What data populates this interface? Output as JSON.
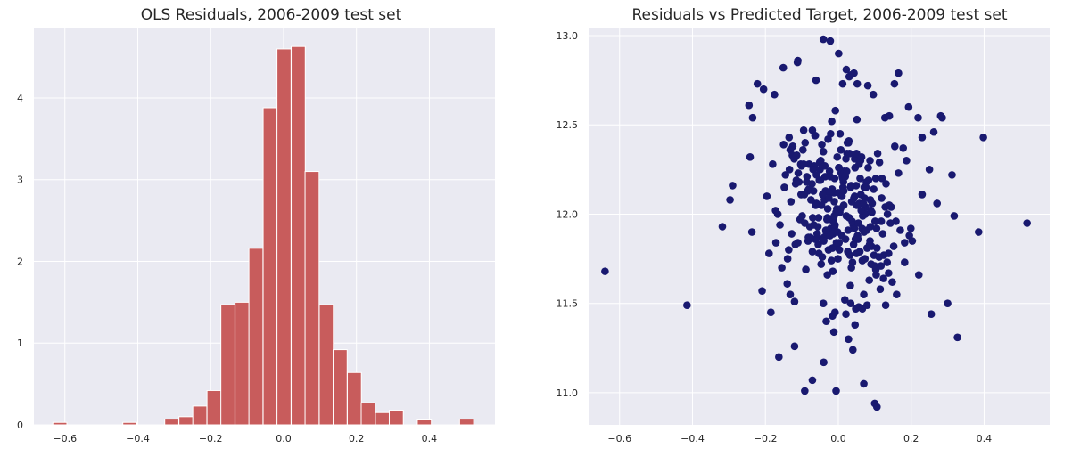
{
  "chart_data": [
    {
      "type": "bar",
      "subtype": "histogram",
      "title": "OLS Residuals, 2006-2009 test set",
      "xlabel": "",
      "ylabel": "",
      "xlim": [
        -0.685,
        0.58
      ],
      "ylim": [
        0,
        4.85
      ],
      "xticks": [
        -0.6,
        -0.4,
        -0.2,
        0.0,
        0.2,
        0.4
      ],
      "xtick_labels": [
        "−0.6",
        "−0.4",
        "−0.2",
        "0.0",
        "0.2",
        "0.4"
      ],
      "yticks": [
        0,
        1,
        2,
        3,
        4
      ],
      "ytick_labels": [
        "0",
        "1",
        "2",
        "3",
        "4"
      ],
      "bin_width": 0.0385,
      "bin_starts": [
        -0.633,
        -0.441,
        -0.326,
        -0.287,
        -0.249,
        -0.21,
        -0.172,
        -0.133,
        -0.095,
        -0.056,
        -0.018,
        0.021,
        0.059,
        0.098,
        0.136,
        0.175,
        0.213,
        0.252,
        0.29,
        0.367,
        0.483
      ],
      "values": [
        0.03,
        0.03,
        0.07,
        0.1,
        0.23,
        0.42,
        1.47,
        1.5,
        2.16,
        3.88,
        4.6,
        4.63,
        3.1,
        1.47,
        0.92,
        0.64,
        0.27,
        0.15,
        0.18,
        0.06,
        0.07
      ],
      "grid": true,
      "colors": {
        "bar": "#c85c5c",
        "bar_edge": "#ffffff",
        "background": "#eaeaf2",
        "grid": "#ffffff"
      }
    },
    {
      "type": "scatter",
      "title": "Residuals vs Predicted Target, 2006-2009 test set",
      "xlabel": "",
      "ylabel": "",
      "xlim": [
        -0.685,
        0.58
      ],
      "ylim": [
        10.82,
        13.04
      ],
      "xticks": [
        -0.6,
        -0.4,
        -0.2,
        0.0,
        0.2,
        0.4
      ],
      "xtick_labels": [
        "−0.6",
        "−0.4",
        "−0.2",
        "0.0",
        "0.2",
        "0.4"
      ],
      "yticks": [
        11.0,
        11.5,
        12.0,
        12.5,
        13.0
      ],
      "ytick_labels": [
        "11.0",
        "11.5",
        "12.0",
        "12.5",
        "13.0"
      ],
      "grid": true,
      "points_x": [
        -0.64,
        -0.415,
        0.518,
        0.398,
        0.385,
        0.327,
        0.312,
        0.318,
        0.281,
        0.271,
        0.221,
        0.199,
        0.187,
        0.16,
        0.138,
        -0.297,
        -0.318,
        -0.29,
        -0.242,
        -0.237,
        -0.209,
        -0.171,
        -0.163,
        -0.132,
        -0.12,
        -0.04,
        -0.012,
        0.028,
        0.07,
        0.1,
        0.106,
        -0.092,
        -0.071,
        -0.041,
        -0.022,
        0.022,
        0.043,
        0.035,
        -0.061,
        0.012,
        0.052,
        0.001,
        0.03,
        -0.112,
        0.081,
        0.096,
        0.04,
        -0.006,
        0.154,
        0.182,
        0.193,
        -0.205,
        -0.222,
        -0.151,
        -0.111,
        0.219,
        0.262,
        0.285,
        0.23,
        0.25,
        -0.06,
        0.011,
        0.045,
        0.071,
        -0.021,
        0.065,
        -0.045,
        0.12,
        0.155,
        -0.021,
        0.01,
        0.03,
        0.05,
        -0.03,
        0.002,
        0.024,
        0.015,
        -0.014,
        0.038,
        -0.036,
        0.062,
        -0.055,
        0.079,
        -0.072,
        0.092,
        -0.089,
        0.108,
        -0.105,
        0.125,
        -0.125,
        0.145,
        -0.14,
        0.165,
        -0.16,
        0.182,
        -0.18,
        0.203,
        -0.196,
        0.005,
        0.018,
        -0.008,
        0.033,
        -0.018,
        0.048,
        -0.028,
        0.056,
        -0.048,
        0.07,
        -0.064,
        0.085,
        -0.08,
        0.1,
        -0.095,
        0.115,
        -0.115,
        0.13,
        -0.132,
        0.148,
        -0.148,
        0.002,
        0.014,
        -0.004,
        0.026,
        -0.012,
        0.041,
        -0.024,
        0.054,
        -0.038,
        0.066,
        -0.052,
        0.078,
        -0.066,
        0.091,
        -0.081,
        0.104,
        -0.097,
        0.118,
        -0.114,
        0.134,
        -0.13,
        0.152,
        -0.145,
        0.17,
        -0.166,
        0.01,
        -0.003,
        0.022,
        -0.015,
        0.034,
        -0.027,
        0.046,
        -0.039,
        0.058,
        -0.051,
        0.073,
        -0.068,
        0.088,
        -0.083,
        0.103,
        -0.099,
        0.119,
        -0.118,
        0.138,
        -0.134,
        0.158,
        -0.155,
        0.178,
        -0.172,
        0.195,
        -0.19,
        0.0,
        0.012,
        -0.01,
        0.025,
        -0.02,
        0.037,
        -0.033,
        0.049,
        -0.044,
        0.061,
        -0.057,
        0.075,
        -0.07,
        0.09,
        -0.086,
        0.106,
        -0.102,
        0.124,
        -0.121,
        0.143,
        -0.139,
        0.008,
        -0.006,
        0.02,
        -0.017,
        0.032,
        -0.029,
        0.044,
        -0.041,
        0.059,
        -0.054,
        0.072,
        -0.069,
        0.087,
        -0.084,
        0.103,
        -0.101,
        0.122,
        -0.117,
        0.14,
        -0.136,
        0.004,
        0.016,
        -0.009,
        0.029,
        -0.023,
        0.043,
        -0.035,
        0.055,
        -0.05,
        0.069,
        -0.063,
        0.083,
        -0.078,
        0.098,
        -0.093,
        0.113,
        -0.111,
        0.131,
        -0.128,
        0.006,
        0.019,
        -0.007,
        0.031,
        -0.019,
        0.045,
        -0.031,
        0.057,
        -0.046,
        0.071,
        -0.06,
        0.086,
        -0.075,
        0.101,
        -0.091,
        0.117,
        -0.108,
        0.135,
        -0.126,
        0.003,
        0.013,
        -0.011,
        0.027,
        -0.025,
        0.039,
        -0.037,
        0.053,
        -0.049,
        0.067,
        -0.062,
        0.082,
        -0.077,
        0.097,
        -0.092,
        0.112,
        -0.11,
        0.129,
        0.007,
        -0.002,
        0.021,
        -0.016,
        0.035,
        -0.03,
        0.047,
        -0.043,
        0.06,
        -0.056,
        0.074,
        -0.071,
        0.089,
        -0.087,
        0.105,
        -0.103,
        0.009,
        -0.005,
        0.023,
        -0.013,
        0.036,
        -0.026,
        0.05,
        -0.04,
        0.063,
        -0.053,
        0.077,
        -0.067,
        0.093,
        -0.082,
        0.001,
        0.015,
        -0.001,
        0.028,
        -0.011,
        0.042,
        -0.022,
        0.051,
        -0.034,
        0.064,
        -0.047,
        0.076,
        -0.058,
        0.088,
        -0.071,
        -0.135,
        -0.095,
        -0.063,
        -0.01,
        0.051,
        0.087,
        0.128,
        -0.15,
        0.14,
        -0.175,
        0.165,
        -0.245,
        -0.235,
        0.23,
        0.3,
        0.255,
        -0.185,
        -0.12,
        0.079,
        0.046,
        -0.033,
        -0.016,
        0.034,
        0.021,
        -0.041,
        0.066,
        -0.009,
        0.003,
        0.048
      ],
      "points_y": [
        11.68,
        11.49,
        11.95,
        12.43,
        11.9,
        11.31,
        12.22,
        11.99,
        12.55,
        12.06,
        11.66,
        11.92,
        12.3,
        11.55,
        11.78,
        12.08,
        11.93,
        12.16,
        12.32,
        11.9,
        11.57,
        11.84,
        11.2,
        11.55,
        11.26,
        11.17,
        11.34,
        11.3,
        11.05,
        10.94,
        10.92,
        11.01,
        11.07,
        12.98,
        12.97,
        12.81,
        12.79,
        12.78,
        12.75,
        12.73,
        12.73,
        12.9,
        12.77,
        12.85,
        12.72,
        12.67,
        11.24,
        11.01,
        12.73,
        11.84,
        12.6,
        12.7,
        12.73,
        12.82,
        12.86,
        12.54,
        12.46,
        12.54,
        12.43,
        12.25,
        12.06,
        12.21,
        12.31,
        12.15,
        12.45,
        11.92,
        12.39,
        12.2,
        12.38,
        11.92,
        12.1,
        11.98,
        11.78,
        11.66,
        12.26,
        12.34,
        12.05,
        11.89,
        11.96,
        12.21,
        12.11,
        11.83,
        11.81,
        12.17,
        12.01,
        11.69,
        12.34,
        11.97,
        11.77,
        12.38,
        12.04,
        11.61,
        12.23,
        11.94,
        11.73,
        12.28,
        11.85,
        12.1,
        12.45,
        11.52,
        12.58,
        11.6,
        12.52,
        11.47,
        12.42,
        11.48,
        12.3,
        11.55,
        12.44,
        11.63,
        12.28,
        11.71,
        12.47,
        11.58,
        12.19,
        11.49,
        12.36,
        11.62,
        12.15,
        11.84,
        12.18,
        12.03,
        11.79,
        12.12,
        11.94,
        12.24,
        11.86,
        12.08,
        11.74,
        12.19,
        11.91,
        12.27,
        11.82,
        12.14,
        11.66,
        12.36,
        11.96,
        12.33,
        11.73,
        12.07,
        11.82,
        12.22,
        11.91,
        12.0,
        11.88,
        12.32,
        11.99,
        11.68,
        12.15,
        11.8,
        12.26,
        11.87,
        12.06,
        12.29,
        11.75,
        12.13,
        11.93,
        11.85,
        12.2,
        11.99,
        12.09,
        11.83,
        11.67,
        12.25,
        11.96,
        11.7,
        12.37,
        12.02,
        11.88,
        11.78,
        12.12,
        12.2,
        11.93,
        12.4,
        11.97,
        12.07,
        11.9,
        12.16,
        11.76,
        12.3,
        11.87,
        12.04,
        11.98,
        11.72,
        12.21,
        11.81,
        12.11,
        11.64,
        12.31,
        11.95,
        11.75,
        12.23,
        12.01,
        11.86,
        12.14,
        11.77,
        12.03,
        11.92,
        12.35,
        11.79,
        11.98,
        12.09,
        12.25,
        11.85,
        12.13,
        11.69,
        12.27,
        11.89,
        12.17,
        12.05,
        11.8,
        12.01,
        12.24,
        11.94,
        12.41,
        11.88,
        12.09,
        12.13,
        11.95,
        12.25,
        12.06,
        11.86,
        12.19,
        11.93,
        11.77,
        12.11,
        12.29,
        11.84,
        12.17,
        11.89,
        12.03,
        12.21,
        11.82,
        12.34,
        11.74,
        12.1,
        11.97,
        12.28,
        12.05,
        11.9,
        12.22,
        11.83,
        12.08,
        11.96,
        12.4,
        11.71,
        12.18,
        12.0,
        12.33,
        11.8,
        12.15,
        12.07,
        11.91,
        12.12,
        11.73,
        12.27,
        11.88,
        12.19,
        11.99,
        12.05,
        12.26,
        11.87,
        12.14,
        11.95,
        11.76,
        12.23,
        12.04,
        12.36,
        11.9,
        12.31,
        11.81,
        12.16,
        11.98,
        11.86,
        12.11,
        12.2,
        11.93,
        12.0,
        11.79,
        12.02,
        12.18,
        11.92,
        12.28,
        12.1,
        11.84,
        12.24,
        11.96,
        11.7,
        12.09,
        12.34,
        11.85,
        12.02,
        11.78,
        12.18,
        11.94,
        12.06,
        11.87,
        12.26,
        12.13,
        11.75,
        12.4,
        11.99,
        11.83,
        12.21,
        12.05,
        11.91,
        12.32,
        11.72,
        12.15,
        11.89,
        12.08,
        12.47,
        12.43,
        12.28,
        12.44,
        12.2,
        12.53,
        12.3,
        12.54,
        12.39,
        12.55,
        12.67,
        12.79,
        12.61,
        12.54,
        12.11,
        11.5,
        11.44,
        11.45,
        11.51,
        11.49,
        11.38,
        11.4,
        11.43,
        11.5,
        11.44,
        11.5,
        11.47,
        11.45
      ],
      "colors": {
        "point": "#191970",
        "background": "#eaeaf2",
        "grid": "#ffffff"
      }
    }
  ]
}
